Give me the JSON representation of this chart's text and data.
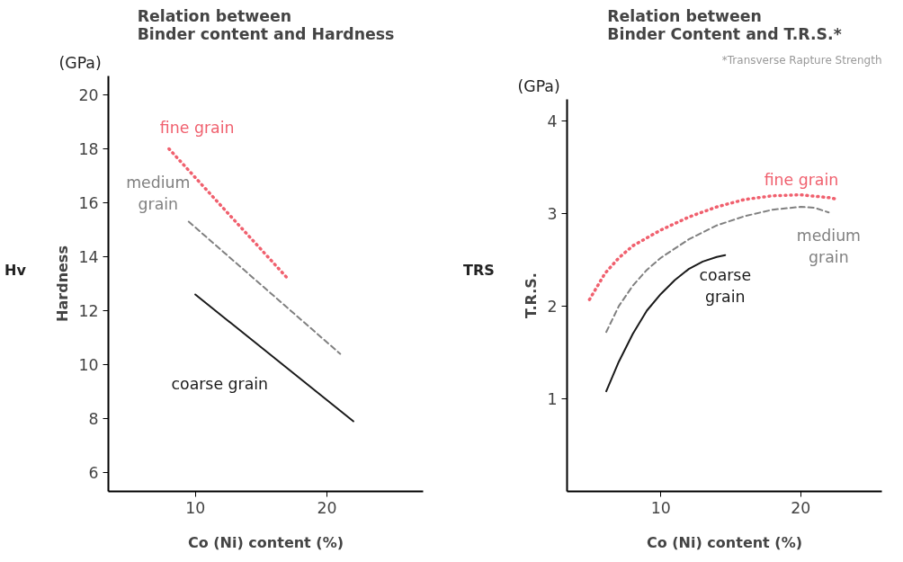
{
  "chart_data": [
    {
      "type": "line",
      "title": "Relation between\nBinder content and Hardness",
      "xlabel": "Co (Ni) content (%)",
      "ylabel": "Hardness",
      "annotations": [
        "(GPa)",
        "Hv"
      ],
      "xlim": [
        3.4,
        27.3
      ],
      "ylim": [
        5.3,
        20.7
      ],
      "xticks": [
        10,
        20
      ],
      "yticks": [
        6,
        8,
        10,
        12,
        14,
        16,
        18,
        20
      ],
      "grid": false,
      "legend": false,
      "series": [
        {
          "name": "fine grain",
          "color": "#f0606e",
          "line_style": "dotted",
          "x": [
            8,
            17
          ],
          "values": [
            18.0,
            13.2
          ]
        },
        {
          "name": "medium\ngrain",
          "color": "#808080",
          "line_style": "dashed",
          "x": [
            9.5,
            21
          ],
          "values": [
            15.3,
            10.4
          ]
        },
        {
          "name": "coarse grain",
          "color": "#1a1a1a",
          "line_style": "solid",
          "x": [
            10,
            22
          ],
          "values": [
            12.6,
            7.9
          ]
        }
      ]
    },
    {
      "type": "line",
      "title": "Relation between\nBinder Content and T.R.S.*",
      "xlabel": "Co (Ni) content (%)",
      "ylabel": "T.R.S.",
      "annotations": [
        "(GPa)",
        "TRS",
        "*Transverse Rapture Strength"
      ],
      "xlim": [
        3.3,
        25.8
      ],
      "ylim": [
        0,
        4.23
      ],
      "xticks": [
        10,
        20
      ],
      "yticks": [
        1,
        2,
        3,
        4
      ],
      "grid": false,
      "legend": false,
      "series": [
        {
          "name": "fine grain",
          "color": "#f0606e",
          "line_style": "dotted",
          "x": [
            4.9,
            6,
            7,
            8,
            10,
            12,
            14,
            16,
            18,
            20,
            22,
            22.7
          ],
          "values": [
            2.07,
            2.35,
            2.52,
            2.65,
            2.82,
            2.96,
            3.07,
            3.15,
            3.19,
            3.2,
            3.17,
            3.15
          ]
        },
        {
          "name": "medium\ngrain",
          "color": "#808080",
          "line_style": "dashed",
          "x": [
            6.1,
            7,
            8,
            9,
            10,
            12,
            14,
            16,
            18,
            20,
            21,
            22
          ],
          "values": [
            1.72,
            2.0,
            2.22,
            2.39,
            2.52,
            2.72,
            2.87,
            2.97,
            3.04,
            3.07,
            3.06,
            3.01
          ]
        },
        {
          "name": "coarse\ngrain",
          "color": "#1a1a1a",
          "line_style": "solid",
          "x": [
            6.1,
            7,
            8,
            9,
            10,
            11,
            12,
            13,
            14,
            14.6
          ],
          "values": [
            1.08,
            1.4,
            1.7,
            1.95,
            2.13,
            2.28,
            2.4,
            2.48,
            2.53,
            2.55
          ]
        }
      ]
    }
  ]
}
